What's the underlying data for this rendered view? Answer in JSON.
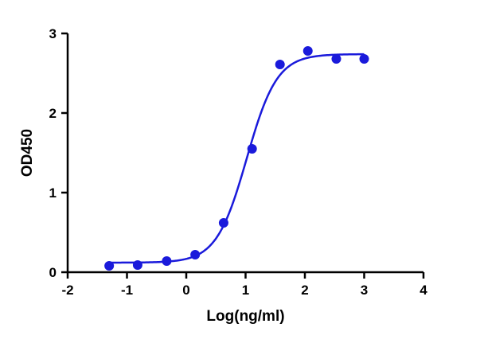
{
  "chart_data": {
    "type": "scatter",
    "title": "",
    "xlabel": "Log(ng/ml)",
    "ylabel": "OD450",
    "xlim": [
      -2,
      4
    ],
    "ylim": [
      0,
      3
    ],
    "xticks": [
      -2,
      -1,
      0,
      1,
      2,
      3,
      4
    ],
    "yticks": [
      0,
      1,
      2,
      3
    ],
    "grid": false,
    "legend": "none",
    "colors": {
      "series": "#1a1adb",
      "axis": "#000000"
    },
    "series": [
      {
        "points": [
          {
            "x": -1.3,
            "y": 0.08
          },
          {
            "x": -0.82,
            "y": 0.09
          },
          {
            "x": -0.33,
            "y": 0.14
          },
          {
            "x": 0.15,
            "y": 0.22
          },
          {
            "x": 0.63,
            "y": 0.62
          },
          {
            "x": 1.11,
            "y": 1.55
          },
          {
            "x": 1.58,
            "y": 2.61
          },
          {
            "x": 2.05,
            "y": 2.78
          },
          {
            "x": 2.53,
            "y": 2.68
          },
          {
            "x": 3.0,
            "y": 2.68
          }
        ],
        "fit": {
          "model": "4PL",
          "bottom": 0.12,
          "top": 2.74,
          "logEC50": 1.02,
          "hill": 1.7
        }
      }
    ]
  }
}
